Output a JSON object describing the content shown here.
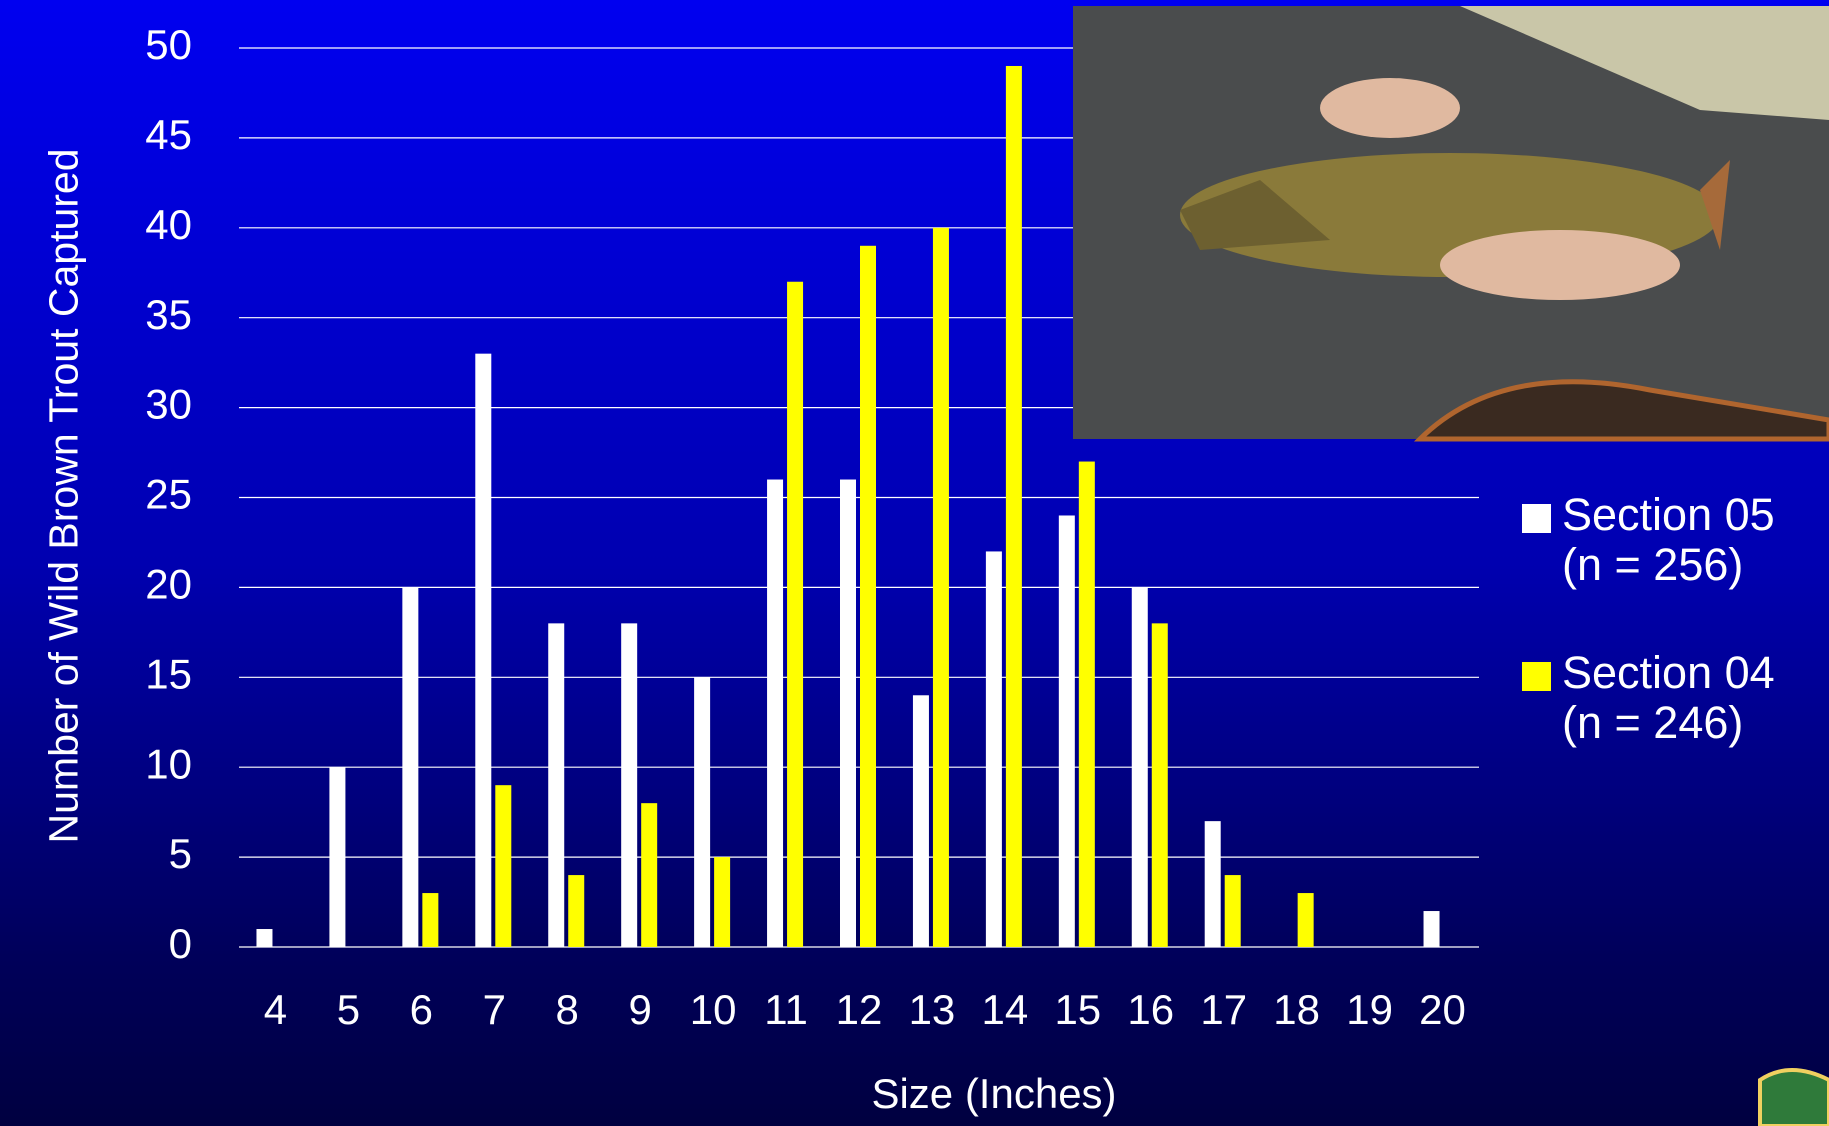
{
  "chart_data": {
    "type": "bar",
    "x_label": "Size (Inches)",
    "y_label": "Number of Wild Brown Trout Captured",
    "categories": [
      "4",
      "5",
      "6",
      "7",
      "8",
      "9",
      "10",
      "11",
      "12",
      "13",
      "14",
      "15",
      "16",
      "17",
      "18",
      "19",
      "20"
    ],
    "series": [
      {
        "name": "Section 05 (n = 256)",
        "color": "#ffffff",
        "values": [
          1,
          10,
          20,
          33,
          18,
          18,
          15,
          26,
          26,
          14,
          22,
          24,
          20,
          7,
          0,
          0,
          2
        ]
      },
      {
        "name": "Section 04 (n = 246)",
        "color": "#ffff00",
        "values": [
          0,
          0,
          3,
          9,
          4,
          8,
          5,
          37,
          39,
          40,
          49,
          27,
          18,
          4,
          3,
          0,
          0
        ]
      }
    ],
    "ylim": [
      0,
      50
    ],
    "yticks": [
      0,
      5,
      10,
      15,
      20,
      25,
      30,
      35,
      40,
      45,
      50
    ],
    "grid": true,
    "legend": "right"
  }
}
